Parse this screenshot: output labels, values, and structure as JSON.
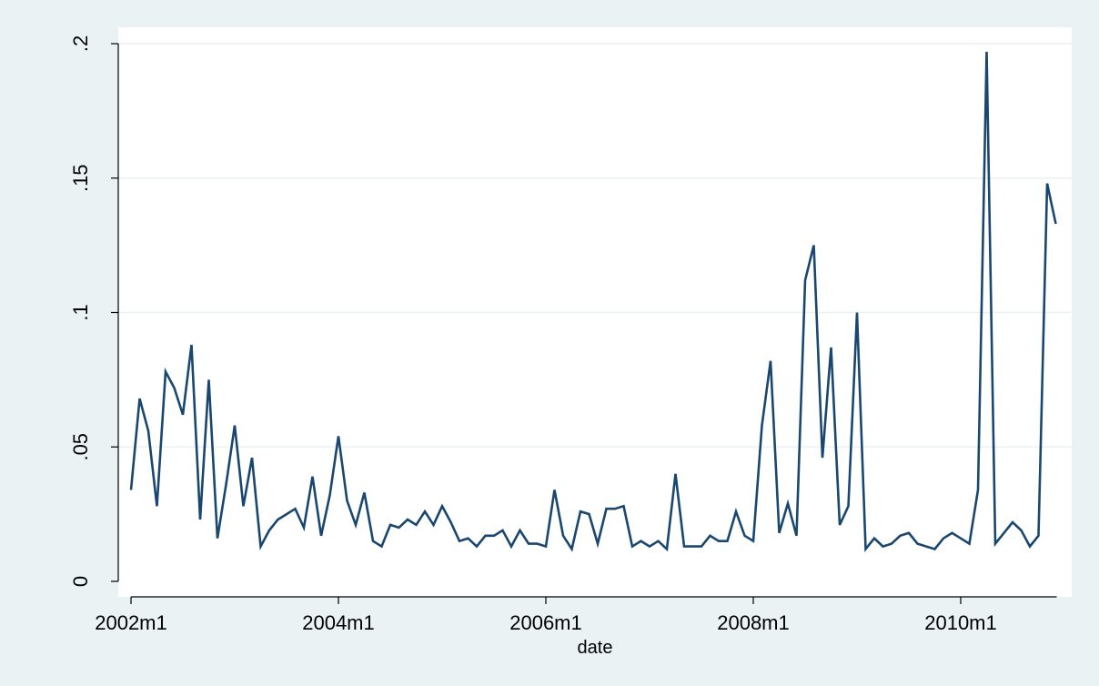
{
  "chart_data": {
    "type": "line",
    "title": "",
    "xlabel": "date",
    "ylabel": "",
    "x_tick_labels": [
      "2002m1",
      "2004m1",
      "2006m1",
      "2008m1",
      "2010m1"
    ],
    "y_tick_labels": [
      "0",
      ".05",
      ".1",
      ".15",
      ".2"
    ],
    "y_ticks": [
      0,
      0.05,
      0.1,
      0.15,
      0.2
    ],
    "ylim": [
      -0.004,
      0.2
    ],
    "xlim": [
      "2001m12",
      "2011m1"
    ],
    "grid": true,
    "legend": "none",
    "colors": {
      "line": "#1a476f",
      "plot_background": "#ffffff",
      "outer_background": "#eaf2f3",
      "grid": "#eaf2f3"
    },
    "series": [
      {
        "x": [
          "2002m1",
          "2002m2",
          "2002m3",
          "2002m4",
          "2002m5",
          "2002m6",
          "2002m7",
          "2002m8",
          "2002m9",
          "2002m10",
          "2002m11",
          "2002m12",
          "2003m1",
          "2003m2",
          "2003m3",
          "2003m4",
          "2003m5",
          "2003m6",
          "2003m7",
          "2003m8",
          "2003m9",
          "2003m10",
          "2003m11",
          "2003m12",
          "2004m1",
          "2004m2",
          "2004m3",
          "2004m4",
          "2004m5",
          "2004m6",
          "2004m7",
          "2004m8",
          "2004m9",
          "2004m10",
          "2004m11",
          "2004m12",
          "2005m1",
          "2005m2",
          "2005m3",
          "2005m4",
          "2005m5",
          "2005m6",
          "2005m7",
          "2005m8",
          "2005m9",
          "2005m10",
          "2005m11",
          "2005m12",
          "2006m1",
          "2006m2",
          "2006m3",
          "2006m4",
          "2006m5",
          "2006m6",
          "2006m7",
          "2006m8",
          "2006m9",
          "2006m10",
          "2006m11",
          "2006m12",
          "2007m1",
          "2007m2",
          "2007m3",
          "2007m4",
          "2007m5",
          "2007m6",
          "2007m7",
          "2007m8",
          "2007m9",
          "2007m10",
          "2007m11",
          "2007m12",
          "2008m1",
          "2008m2",
          "2008m3",
          "2008m4",
          "2008m5",
          "2008m6",
          "2008m7",
          "2008m8",
          "2008m9",
          "2008m10",
          "2008m11",
          "2008m12",
          "2009m1",
          "2009m2",
          "2009m3",
          "2009m4",
          "2009m5",
          "2009m6",
          "2009m7",
          "2009m8",
          "2009m9",
          "2009m10",
          "2009m11",
          "2009m12",
          "2010m1",
          "2010m2",
          "2010m3",
          "2010m4",
          "2010m5",
          "2010m6",
          "2010m7",
          "2010m8",
          "2010m9",
          "2010m10",
          "2010m11",
          "2010m12"
        ],
        "values": [
          0.034,
          0.068,
          0.056,
          0.028,
          0.078,
          0.072,
          0.062,
          0.088,
          0.023,
          0.075,
          0.016,
          0.036,
          0.058,
          0.028,
          0.046,
          0.013,
          0.019,
          0.023,
          0.025,
          0.027,
          0.02,
          0.039,
          0.017,
          0.032,
          0.054,
          0.03,
          0.021,
          0.033,
          0.015,
          0.013,
          0.021,
          0.02,
          0.023,
          0.021,
          0.026,
          0.021,
          0.028,
          0.022,
          0.015,
          0.016,
          0.013,
          0.017,
          0.017,
          0.019,
          0.013,
          0.019,
          0.014,
          0.014,
          0.013,
          0.034,
          0.017,
          0.012,
          0.026,
          0.025,
          0.014,
          0.027,
          0.027,
          0.028,
          0.013,
          0.015,
          0.013,
          0.015,
          0.012,
          0.04,
          0.013,
          0.013,
          0.013,
          0.017,
          0.015,
          0.015,
          0.026,
          0.017,
          0.015,
          0.058,
          0.082,
          0.018,
          0.029,
          0.017,
          0.112,
          0.125,
          0.046,
          0.087,
          0.021,
          0.028,
          0.1,
          0.012,
          0.016,
          0.013,
          0.014,
          0.017,
          0.018,
          0.014,
          0.013,
          0.012,
          0.016,
          0.018,
          0.016,
          0.014,
          0.034,
          0.197,
          0.014,
          0.018,
          0.022,
          0.019,
          0.013,
          0.017,
          0.148,
          0.133
        ]
      }
    ]
  }
}
